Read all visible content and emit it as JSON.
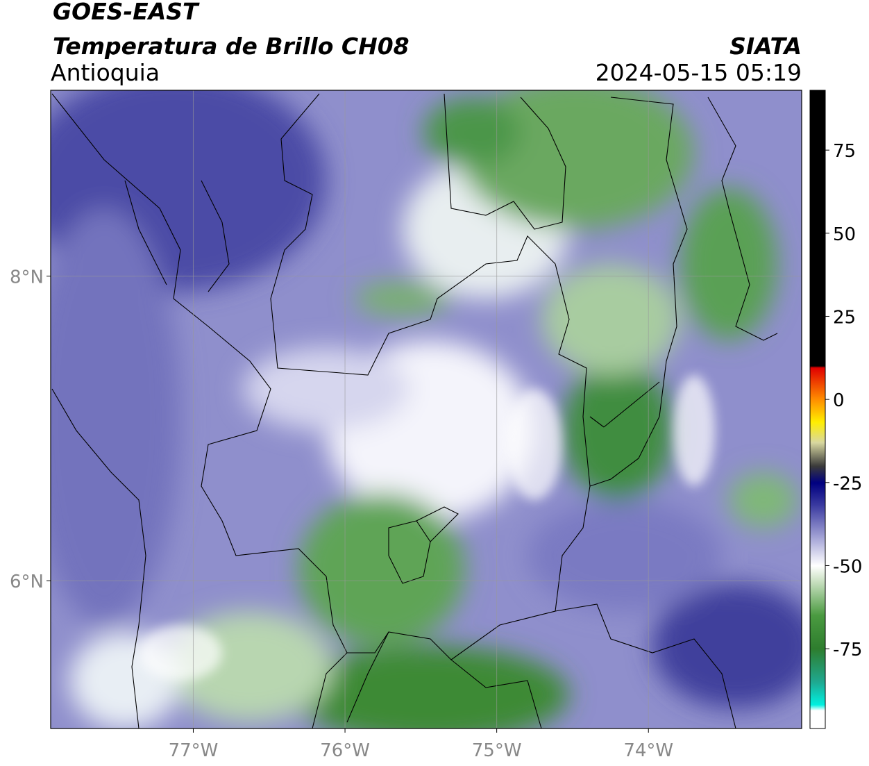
{
  "header": {
    "network": "GOES-EAST",
    "product": "Temperatura de Brillo CH08",
    "region": "Antioquia",
    "source": "SIATA",
    "datetime": "2024-05-15 05:19"
  },
  "map": {
    "xlim": [
      -77.94,
      -72.99
    ],
    "ylim": [
      5.03,
      9.22
    ],
    "xticks": [
      {
        "value": -77,
        "label": "77°W"
      },
      {
        "value": -76,
        "label": "76°W"
      },
      {
        "value": -75,
        "label": "75°W"
      },
      {
        "value": -74,
        "label": "74°W"
      }
    ],
    "yticks": [
      {
        "value": 8,
        "label": "8°N"
      },
      {
        "value": 6,
        "label": "6°N"
      }
    ]
  },
  "colorbar": {
    "lim": [
      -99,
      93
    ],
    "ticks": [
      75,
      50,
      25,
      0,
      -25,
      -50,
      -75
    ]
  }
}
